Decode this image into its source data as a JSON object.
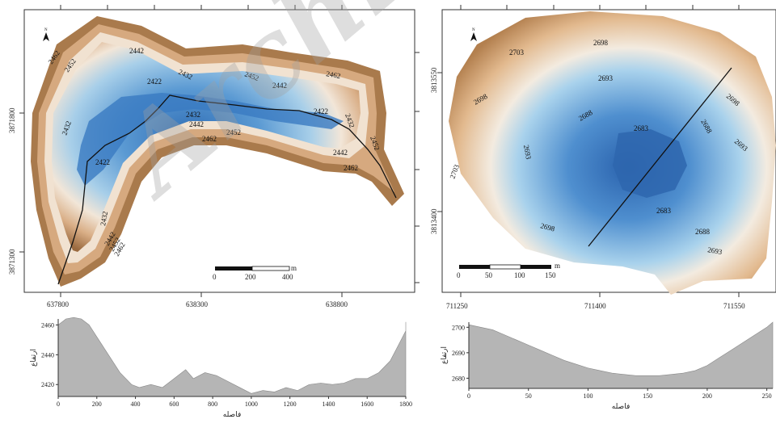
{
  "watermark": "Archive of SID",
  "map_left": {
    "north_label": "N",
    "contour_labels": [
      "2462",
      "2452",
      "2442",
      "2432",
      "2422",
      "2452",
      "2442",
      "2462",
      "2432",
      "2422",
      "2432",
      "2442",
      "2452",
      "2462",
      "2442",
      "2462",
      "2452",
      "2432",
      "2422",
      "2432",
      "2442",
      "2452",
      "2462"
    ],
    "x_ticks": [
      "637800",
      "638300",
      "638800"
    ],
    "y_ticks": [
      "3871800",
      "3871300"
    ],
    "scale_labels": [
      "0",
      "200",
      "400"
    ],
    "scale_unit": "m"
  },
  "map_right": {
    "north_label": "N",
    "contour_labels": [
      "2698",
      "2703",
      "2698",
      "2693",
      "2688",
      "2683",
      "2688",
      "2698",
      "2693",
      "2683",
      "2688",
      "2693",
      "2698",
      "2703",
      "2693"
    ],
    "x_ticks": [
      "711250",
      "711400",
      "711550"
    ],
    "y_ticks": [
      "3813550",
      "3813400"
    ],
    "scale_labels": [
      "0",
      "50",
      "100",
      "150"
    ],
    "scale_unit": "m"
  },
  "chart_data": [
    {
      "type": "area",
      "xlabel": "فاصله",
      "ylabel": "ارتفاع",
      "xlim": [
        0,
        1800
      ],
      "ylim": [
        2412,
        2464
      ],
      "x_ticks": [
        0,
        200,
        400,
        600,
        800,
        1000,
        1200,
        1400,
        1600,
        1800
      ],
      "y_ticks": [
        2420,
        2440,
        2460
      ],
      "x": [
        0,
        40,
        80,
        120,
        160,
        200,
        260,
        320,
        380,
        420,
        480,
        540,
        600,
        660,
        700,
        760,
        820,
        880,
        940,
        1000,
        1060,
        1120,
        1180,
        1240,
        1300,
        1360,
        1420,
        1480,
        1540,
        1600,
        1660,
        1720,
        1760,
        1800,
        1820
      ],
      "y": [
        2460,
        2464,
        2465,
        2464,
        2460,
        2452,
        2440,
        2428,
        2420,
        2418,
        2420,
        2418,
        2424,
        2430,
        2424,
        2428,
        2426,
        2422,
        2418,
        2414,
        2416,
        2415,
        2418,
        2416,
        2420,
        2421,
        2420,
        2421,
        2424,
        2424,
        2428,
        2436,
        2446,
        2456,
        2462
      ]
    },
    {
      "type": "area",
      "xlabel": "فاصله",
      "ylabel": "ارتفاع",
      "xlim": [
        0,
        255
      ],
      "ylim": [
        2676,
        2702
      ],
      "x_ticks": [
        0,
        50,
        100,
        150,
        200,
        250
      ],
      "y_ticks": [
        2680,
        2690,
        2700
      ],
      "x": [
        0,
        10,
        20,
        30,
        40,
        50,
        60,
        70,
        80,
        90,
        100,
        110,
        120,
        130,
        140,
        150,
        160,
        170,
        180,
        190,
        200,
        210,
        220,
        230,
        240,
        250,
        255
      ],
      "y": [
        2701,
        2700,
        2699,
        2697,
        2695,
        2693,
        2691,
        2689,
        2687,
        2685.5,
        2684,
        2683,
        2682,
        2681.5,
        2681,
        2681,
        2681,
        2681.5,
        2682,
        2683,
        2685,
        2688,
        2691,
        2694,
        2697,
        2700,
        2702
      ]
    }
  ]
}
